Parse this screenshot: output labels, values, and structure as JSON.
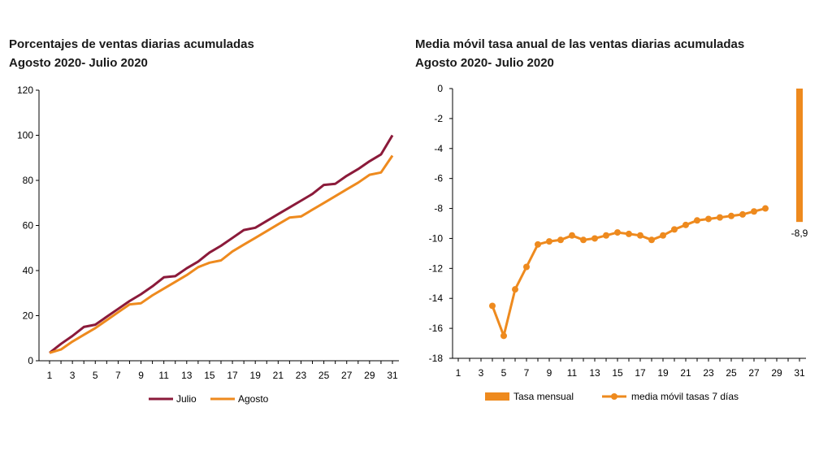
{
  "chart_data": [
    {
      "type": "line",
      "title": "Porcentajes  de ventas diarias acumuladas",
      "subtitle": "Agosto 2020- Julio 2020",
      "xlabel": "",
      "ylabel": "",
      "ylim": [
        0,
        120
      ],
      "yticks": [
        "0",
        "20",
        "40",
        "60",
        "80",
        "100",
        "120"
      ],
      "xticks": [
        "1",
        "3",
        "5",
        "7",
        "9",
        "11",
        "13",
        "15",
        "17",
        "19",
        "21",
        "23",
        "25",
        "27",
        "29",
        "31"
      ],
      "x": [
        1,
        2,
        3,
        4,
        5,
        6,
        7,
        8,
        9,
        10,
        11,
        12,
        13,
        14,
        15,
        16,
        17,
        18,
        19,
        20,
        21,
        22,
        23,
        24,
        25,
        26,
        27,
        28,
        29,
        30,
        31
      ],
      "series": [
        {
          "name": "Julio",
          "color": "#8B1A3A",
          "values": [
            3.5,
            7.5,
            11,
            15,
            16,
            19.5,
            23,
            26.5,
            29.5,
            33,
            37,
            37.5,
            41,
            44,
            48,
            51,
            54.5,
            58,
            59,
            62,
            65,
            68,
            71,
            74,
            78,
            78.5,
            82,
            85,
            88.5,
            91.5,
            100
          ]
        },
        {
          "name": "Agosto",
          "color": "#EE8A1E",
          "values": [
            3.5,
            5,
            8.5,
            11.5,
            14.5,
            18,
            21.5,
            25,
            25.5,
            29,
            32,
            35,
            38,
            41.5,
            43.5,
            44.5,
            48.5,
            51.5,
            54.5,
            57.5,
            60.5,
            63.5,
            64,
            67,
            70,
            73,
            76,
            79,
            82.5,
            83.5,
            91
          ]
        }
      ],
      "legend": "bottom"
    },
    {
      "type": "bar+line",
      "title": "Media móvil tasa anual de las ventas diarias acumuladas",
      "subtitle": "Agosto 2020- Julio 2020",
      "xlabel": "",
      "ylabel": "",
      "ylim": [
        -18,
        0
      ],
      "yticks": [
        "0",
        "-2",
        "-4",
        "-6",
        "-8",
        "-10",
        "-12",
        "-14",
        "-16",
        "-18"
      ],
      "xticks": [
        "1",
        "3",
        "5",
        "7",
        "9",
        "11",
        "13",
        "15",
        "17",
        "19",
        "21",
        "23",
        "25",
        "27",
        "29",
        "31"
      ],
      "bar_series": {
        "name": "Tasa mensual",
        "color": "#EE8A1E",
        "x": [
          31
        ],
        "values": [
          -8.9
        ],
        "labels": [
          "-8,9"
        ]
      },
      "line_series": {
        "name": "media móvil tasas 7 días",
        "color": "#EE8A1E",
        "x": [
          4,
          5,
          6,
          7,
          8,
          9,
          10,
          11,
          12,
          13,
          14,
          15,
          16,
          17,
          18,
          19,
          20,
          21,
          22,
          23,
          24,
          25,
          26,
          27,
          28
        ],
        "values": [
          -14.5,
          -16.5,
          -13.4,
          -11.9,
          -10.4,
          -10.2,
          -10.1,
          -9.8,
          -10.1,
          -10.0,
          -9.8,
          -9.6,
          -9.7,
          -9.8,
          -10.1,
          -9.8,
          -9.4,
          -9.1,
          -8.8,
          -8.7,
          -8.6,
          -8.5,
          -8.4,
          -8.2,
          -8.0
        ]
      },
      "legend": "bottom"
    }
  ]
}
